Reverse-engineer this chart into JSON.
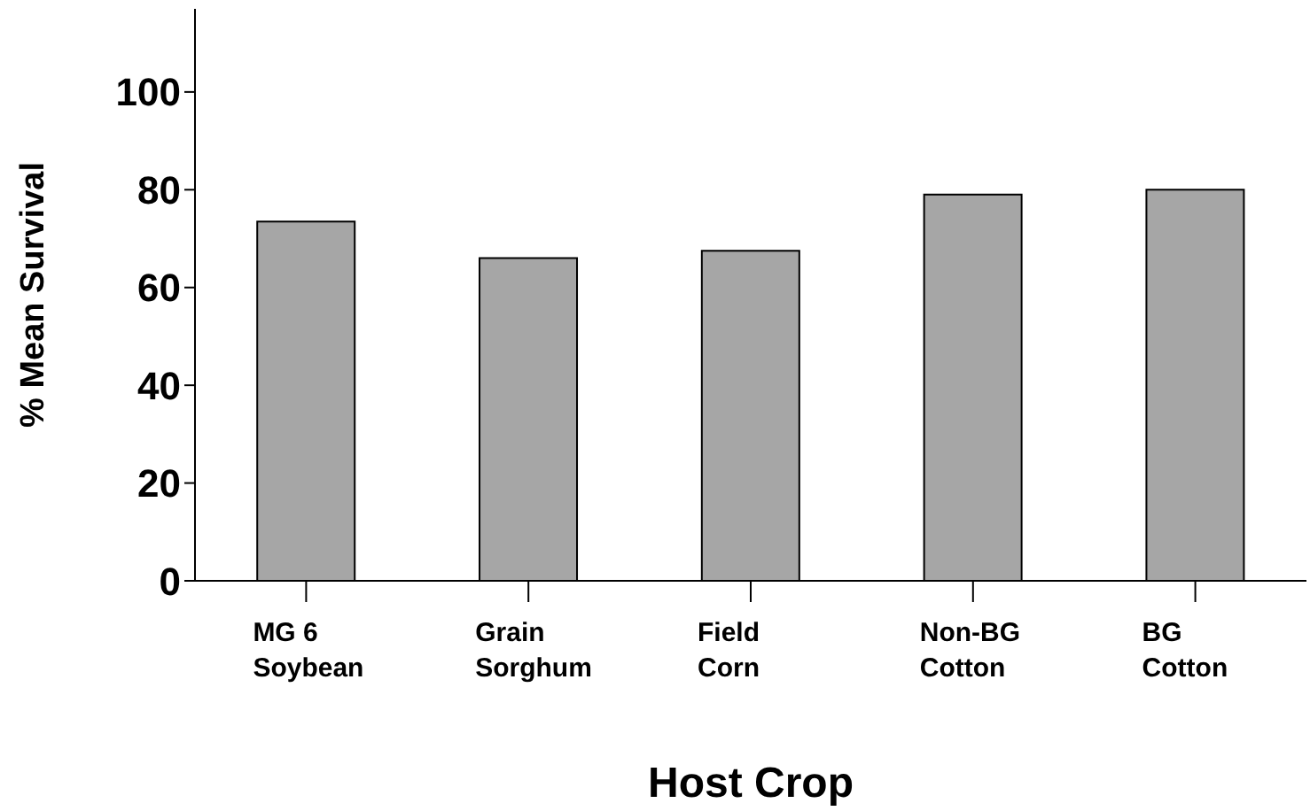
{
  "chart_data": {
    "type": "bar",
    "xlabel": "Host Crop",
    "ylabel": "% Mean Survival",
    "categories": [
      "MG 6\nSoybean",
      "Grain\nSorghum",
      "Field\nCorn",
      "Non-BG\nCotton",
      "BG\nCotton"
    ],
    "values": [
      73.5,
      66,
      67.5,
      79,
      80
    ],
    "color": "#a6a6a6",
    "ylim": [
      0,
      117
    ],
    "yticks": [
      0,
      20,
      40,
      60,
      80,
      100
    ],
    "grid": false
  }
}
